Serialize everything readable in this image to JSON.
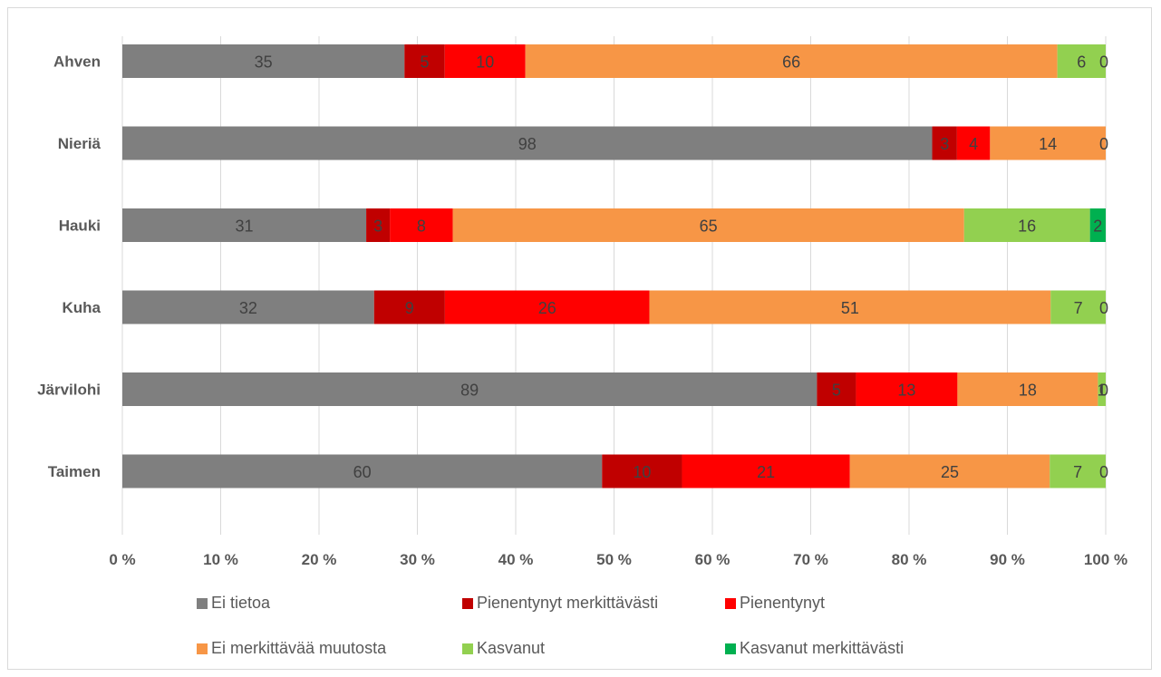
{
  "chart_data": {
    "type": "bar",
    "orientation": "horizontal",
    "stacking": "percent",
    "categories": [
      "Ahven",
      "Nieriä",
      "Hauki",
      "Kuha",
      "Järvilohi",
      "Taimen"
    ],
    "series": [
      {
        "name": "Ei tietoa",
        "color": "#7f7f7f",
        "values": [
          35,
          98,
          31,
          32,
          89,
          60
        ]
      },
      {
        "name": "Pienentynyt merkittävästi",
        "color": "#c00000",
        "values": [
          5,
          3,
          3,
          9,
          5,
          10
        ]
      },
      {
        "name": "Pienentynyt",
        "color": "#ff0000",
        "values": [
          10,
          4,
          8,
          26,
          13,
          21
        ]
      },
      {
        "name": "Ei merkittävää muutosta",
        "color": "#f79646",
        "values": [
          66,
          14,
          65,
          51,
          18,
          25
        ]
      },
      {
        "name": "Kasvanut",
        "color": "#92d050",
        "values": [
          6,
          0,
          16,
          7,
          1,
          7
        ]
      },
      {
        "name": "Kasvanut merkittävästi",
        "color": "#00b050",
        "values": [
          0,
          0,
          2,
          0,
          0,
          0
        ]
      }
    ],
    "x_ticks": [
      "0 %",
      "10 %",
      "20 %",
      "30 %",
      "40 %",
      "50 %",
      "60 %",
      "70 %",
      "80 %",
      "90 %",
      "100 %"
    ],
    "xlim": [
      0,
      100
    ],
    "grid": "vertical",
    "legend_position": "bottom"
  }
}
